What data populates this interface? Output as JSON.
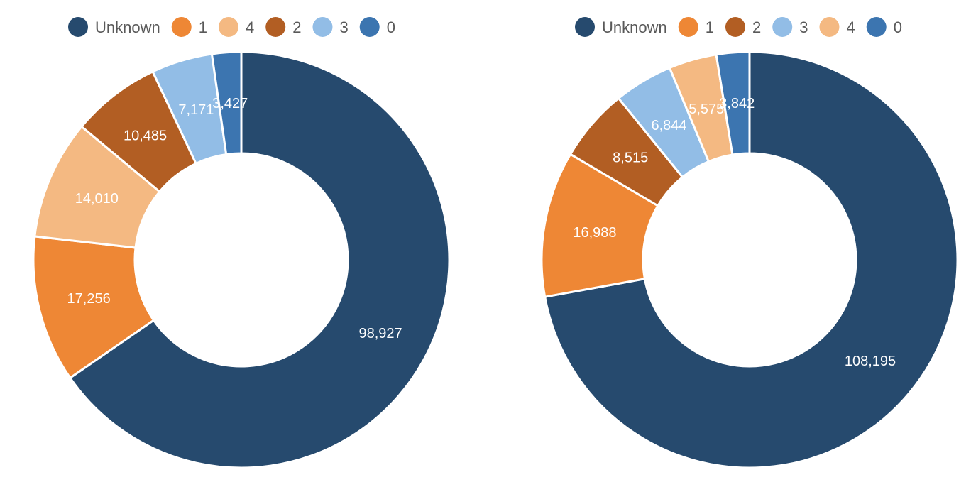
{
  "chart_data": [
    {
      "type": "pie",
      "donut": true,
      "legend_position": "top",
      "start": "top, clockwise",
      "categories": [
        "Unknown",
        "1",
        "4",
        "2",
        "3",
        "0"
      ],
      "values": [
        98927,
        17256,
        14010,
        10485,
        7171,
        3427
      ],
      "labels": [
        "98,927",
        "17,256",
        "14,010",
        "10,485",
        "7,171",
        "3,427"
      ],
      "colors": [
        "#264a6e",
        "#ee8735",
        "#f4b982",
        "#b25e23",
        "#92bde6",
        "#3c75b0"
      ]
    },
    {
      "type": "pie",
      "donut": true,
      "legend_position": "top",
      "start": "top, clockwise",
      "categories": [
        "Unknown",
        "1",
        "2",
        "3",
        "4",
        "0"
      ],
      "values": [
        108195,
        16988,
        8515,
        6844,
        5575,
        3842
      ],
      "labels": [
        "108,195",
        "16,988",
        "8,515",
        "6,844",
        "5,575",
        "3,842"
      ],
      "colors": [
        "#264a6e",
        "#ee8735",
        "#b25e23",
        "#92bde6",
        "#f4b982",
        "#3c75b0"
      ]
    }
  ]
}
